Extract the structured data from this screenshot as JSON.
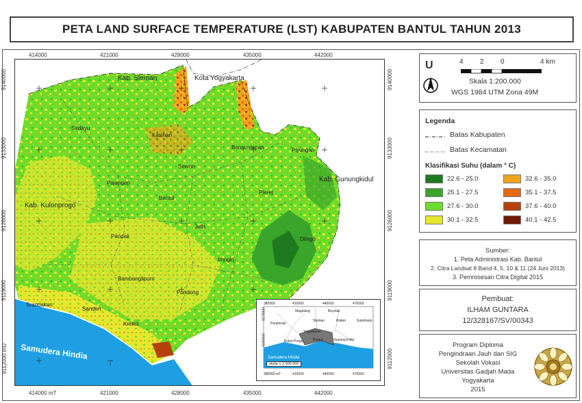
{
  "title": "PETA LAND SURFACE TEMPERATURE (LST) KABUPATEN BANTUL TAHUN 2013",
  "map": {
    "x_ticks": [
      "414000",
      "421000",
      "428000",
      "435000",
      "442000"
    ],
    "x_ticks_bottom": [
      "414000 mT",
      "421000",
      "428000",
      "435000",
      "442000"
    ],
    "y_ticks_left": [
      "9140000",
      "9133000",
      "9126000",
      "9119000",
      "9112000 mU"
    ],
    "y_ticks_right": [
      "9140000",
      "9133000",
      "9126000",
      "9119000",
      "9112000"
    ],
    "regions": {
      "sleman": "Kab. Sleman",
      "yogyakarta": "Kota Yogyakarta",
      "kulonprogo": "Kab. Kulonprogo",
      "gunungkidul": "Kab. Gunungkidul",
      "sea": "Samudera Hindia"
    },
    "districts": [
      "Sedayu",
      "Kasihan",
      "Banguntapan",
      "Piyungan",
      "Sewon",
      "Pajangan",
      "Bantul",
      "Pleret",
      "Jetis",
      "Pandak",
      "Dlingo",
      "Imogiri",
      "Bambanglipuro",
      "Srandakan",
      "Sanden",
      "Pundong",
      "Kretek"
    ]
  },
  "inset": {
    "x_ticks": [
      "380000",
      "410000",
      "440000",
      "470000"
    ],
    "y_ticks": [
      "9170000",
      "9140000"
    ],
    "labels": [
      "Purworejo",
      "Magelang",
      "Boyolali",
      "Sleman",
      "Klaten",
      "Sukoharjo",
      "Yogyakarta",
      "Kulon Progo",
      "Bantul",
      "Gunung Kidul",
      "Samudera Hindia"
    ],
    "scale": "skala 1:2.000.000",
    "bottom_labels": [
      "380000 mT",
      "410000",
      "440000",
      "470000"
    ]
  },
  "north": {
    "letter": "U",
    "scale_ticks": [
      "4",
      "2",
      "0",
      "4 km"
    ],
    "scale": "Skala 1:200.000",
    "projection": "WGS 1984 UTM Zona 49M"
  },
  "legend": {
    "title": "Legenda",
    "kabupaten": "Batas Kabupaten",
    "kecamatan": "Batas Kecamatan",
    "class_title": "Klasifikasi Suhu (dalam ° C)",
    "classes": [
      {
        "label": "22.6 - 25.0",
        "color": "#1f7a1f"
      },
      {
        "label": "25.1 - 27.5",
        "color": "#3aa52b"
      },
      {
        "label": "27.6 - 30.0",
        "color": "#6bdc2a"
      },
      {
        "label": "30.1 - 32.5",
        "color": "#e6e62e"
      },
      {
        "label": "32.6 - 35.0",
        "color": "#f0a41c"
      },
      {
        "label": "35.1 - 37.5",
        "color": "#e46a12"
      },
      {
        "label": "37.6 - 40.0",
        "color": "#b6400c"
      },
      {
        "label": "40.1 - 42.5",
        "color": "#6e1c06"
      }
    ]
  },
  "source": {
    "title": "Sumber:",
    "items": [
      "1. Peta Administrasi Kab. Bantul",
      "2. Citra Landsat 8 Band 4, 5, 10 & 11 (24 Juni 2013)",
      "3. Pemrosesan Citra Digital 2015"
    ]
  },
  "author": {
    "title": "Pembuat:",
    "name": "ILHAM GUNTARA",
    "id": "12/328167/SV/00343"
  },
  "institution": {
    "lines": [
      "Program Diploma",
      "Pengindraan Jauh dan SIG",
      "Sekolah Vokasi",
      "Universitas Gadjah Mada",
      "Yogyakarta",
      "2015"
    ]
  },
  "colors": {
    "sea": "#1e9fe3",
    "map_bg": "#ffffff"
  }
}
